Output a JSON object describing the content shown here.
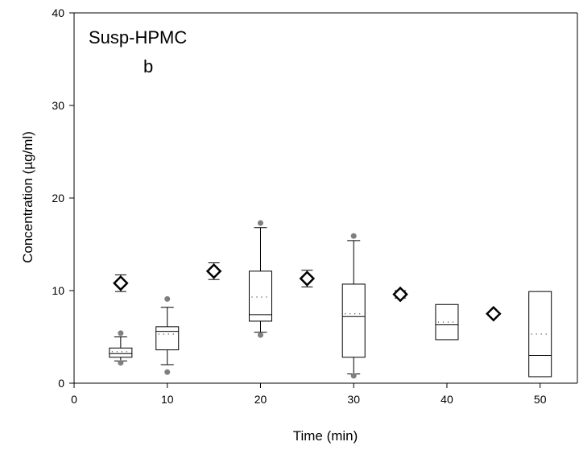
{
  "chart_data": {
    "type": "box",
    "title": "Susp-HPMC",
    "panel_label": "b",
    "xlabel": "Time (min)",
    "ylabel": "Concentration (µg/ml)",
    "xlim": [
      0,
      54
    ],
    "ylim": [
      0,
      40
    ],
    "xticks": [
      0,
      10,
      20,
      30,
      40,
      50
    ],
    "yticks": [
      0,
      10,
      20,
      30,
      40
    ],
    "grid": false,
    "boxes": [
      {
        "x": 5,
        "whisker_low": 2.4,
        "q1": 2.8,
        "median": 3.2,
        "mean": 3.4,
        "q3": 3.8,
        "whisker_high": 5.0,
        "outliers": [
          2.2,
          5.4
        ]
      },
      {
        "x": 10,
        "whisker_low": 2.0,
        "q1": 3.6,
        "median": 5.6,
        "mean": 5.3,
        "q3": 6.1,
        "whisker_high": 8.2,
        "outliers": [
          1.2,
          9.1
        ]
      },
      {
        "x": 20,
        "whisker_low": 5.5,
        "q1": 6.7,
        "median": 7.4,
        "mean": 9.3,
        "q3": 12.1,
        "whisker_high": 16.8,
        "outliers": [
          5.2,
          17.3
        ]
      },
      {
        "x": 30,
        "whisker_low": 1.0,
        "q1": 2.8,
        "median": 7.2,
        "mean": 7.5,
        "q3": 10.7,
        "whisker_high": 15.4,
        "outliers": [
          0.8,
          15.9
        ]
      },
      {
        "x": 40,
        "whisker_low": null,
        "q1": 4.7,
        "median": 6.3,
        "mean": 6.6,
        "q3": 8.5,
        "whisker_high": null,
        "outliers": []
      },
      {
        "x": 50,
        "whisker_low": null,
        "q1": 0.7,
        "median": 3.0,
        "mean": 5.3,
        "q3": 9.9,
        "whisker_high": null,
        "outliers": []
      }
    ],
    "points": [
      {
        "x": 5,
        "y": 10.8,
        "err": 0.9
      },
      {
        "x": 15,
        "y": 12.1,
        "err": 0.9
      },
      {
        "x": 25,
        "y": 11.3,
        "err": 0.9
      },
      {
        "x": 35,
        "y": 9.6,
        "err": 0.4
      },
      {
        "x": 45,
        "y": 7.5,
        "err": 0.0
      }
    ],
    "colors": {
      "outlier": "#7f7f7f",
      "line": "#000000",
      "box_fill": "#ffffff"
    }
  }
}
